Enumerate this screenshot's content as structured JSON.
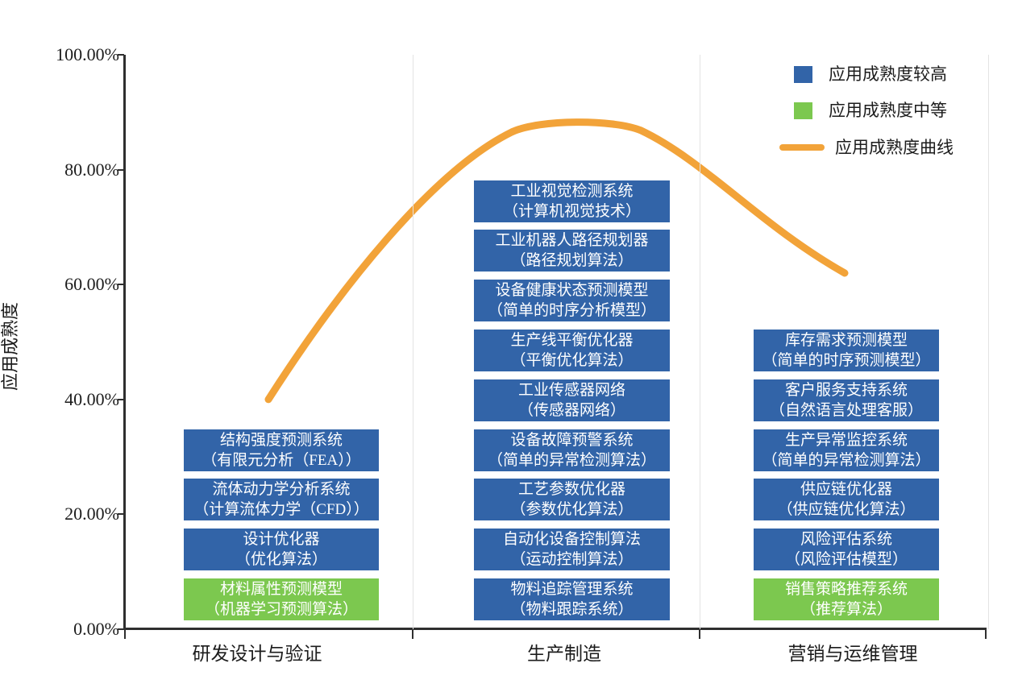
{
  "chart_data": {
    "type": "line",
    "title": "",
    "ylabel": "应用成熟度",
    "xlabel": "",
    "ylim": [
      0,
      100
    ],
    "grid": "category-dividers-only",
    "y_axis": {
      "min": 0,
      "max": 100,
      "tick_labels": [
        "0.00%",
        "20.00%",
        "40.00%",
        "60.00%",
        "80.00%",
        "100.00%"
      ]
    },
    "categories": [
      "研发设计与验证",
      "生产制造",
      "营销与运维管理"
    ],
    "legend": [
      {
        "label": "应用成熟度较高",
        "swatch": "square",
        "color": "#3264A8"
      },
      {
        "label": "应用成熟度中等",
        "swatch": "square",
        "color": "#7CC84F"
      },
      {
        "label": "应用成熟度曲线",
        "swatch": "line",
        "color": "#F2A339"
      }
    ],
    "colors": {
      "high": "#3264A8",
      "medium": "#7CC84F",
      "curve": "#F2A339"
    },
    "curve": {
      "name": "应用成熟度曲线",
      "color": "#F2A339",
      "values_pct_by_category": [
        40,
        88.5,
        62
      ],
      "peak_pct": 88.8
    },
    "columns": [
      {
        "category": "研发设计与验证",
        "boxes": [
          {
            "line1": "结构强度预测系统",
            "line2": "（有限元分析（FEA））",
            "level": "high"
          },
          {
            "line1": "流体动力学分析系统",
            "line2": "（计算流体力学（CFD））",
            "level": "high"
          },
          {
            "line1": "设计优化器",
            "line2": "（优化算法）",
            "level": "high"
          },
          {
            "line1": "材料属性预测模型",
            "line2": "（机器学习预测算法）",
            "level": "medium"
          }
        ]
      },
      {
        "category": "生产制造",
        "boxes": [
          {
            "line1": "工业视觉检测系统",
            "line2": "（计算机视觉技术）",
            "level": "high"
          },
          {
            "line1": "工业机器人路径规划器",
            "line2": "（路径规划算法）",
            "level": "high"
          },
          {
            "line1": "设备健康状态预测模型",
            "line2": "（简单的时序分析模型）",
            "level": "high"
          },
          {
            "line1": "生产线平衡优化器",
            "line2": "（平衡优化算法）",
            "level": "high"
          },
          {
            "line1": "工业传感器网络",
            "line2": "（传感器网络）",
            "level": "high"
          },
          {
            "line1": "设备故障预警系统",
            "line2": "（简单的异常检测算法）",
            "level": "high"
          },
          {
            "line1": "工艺参数优化器",
            "line2": "（参数优化算法）",
            "level": "high"
          },
          {
            "line1": "自动化设备控制算法",
            "line2": "（运动控制算法）",
            "level": "high"
          },
          {
            "line1": "物料追踪管理系统",
            "line2": "（物料跟踪系统）",
            "level": "high"
          }
        ]
      },
      {
        "category": "营销与运维管理",
        "boxes": [
          {
            "line1": "库存需求预测模型",
            "line2": "（简单的时序预测模型）",
            "level": "high"
          },
          {
            "line1": "客户服务支持系统",
            "line2": "（自然语言处理客服）",
            "level": "high"
          },
          {
            "line1": "生产异常监控系统",
            "line2": "（简单的异常检测算法）",
            "level": "high"
          },
          {
            "line1": "供应链优化器",
            "line2": "（供应链优化算法）",
            "level": "high"
          },
          {
            "line1": "风险评估系统",
            "line2": "（风险评估模型）",
            "level": "high"
          },
          {
            "line1": "销售策略推荐系统",
            "line2": "（推荐算法）",
            "level": "medium"
          }
        ]
      }
    ]
  }
}
